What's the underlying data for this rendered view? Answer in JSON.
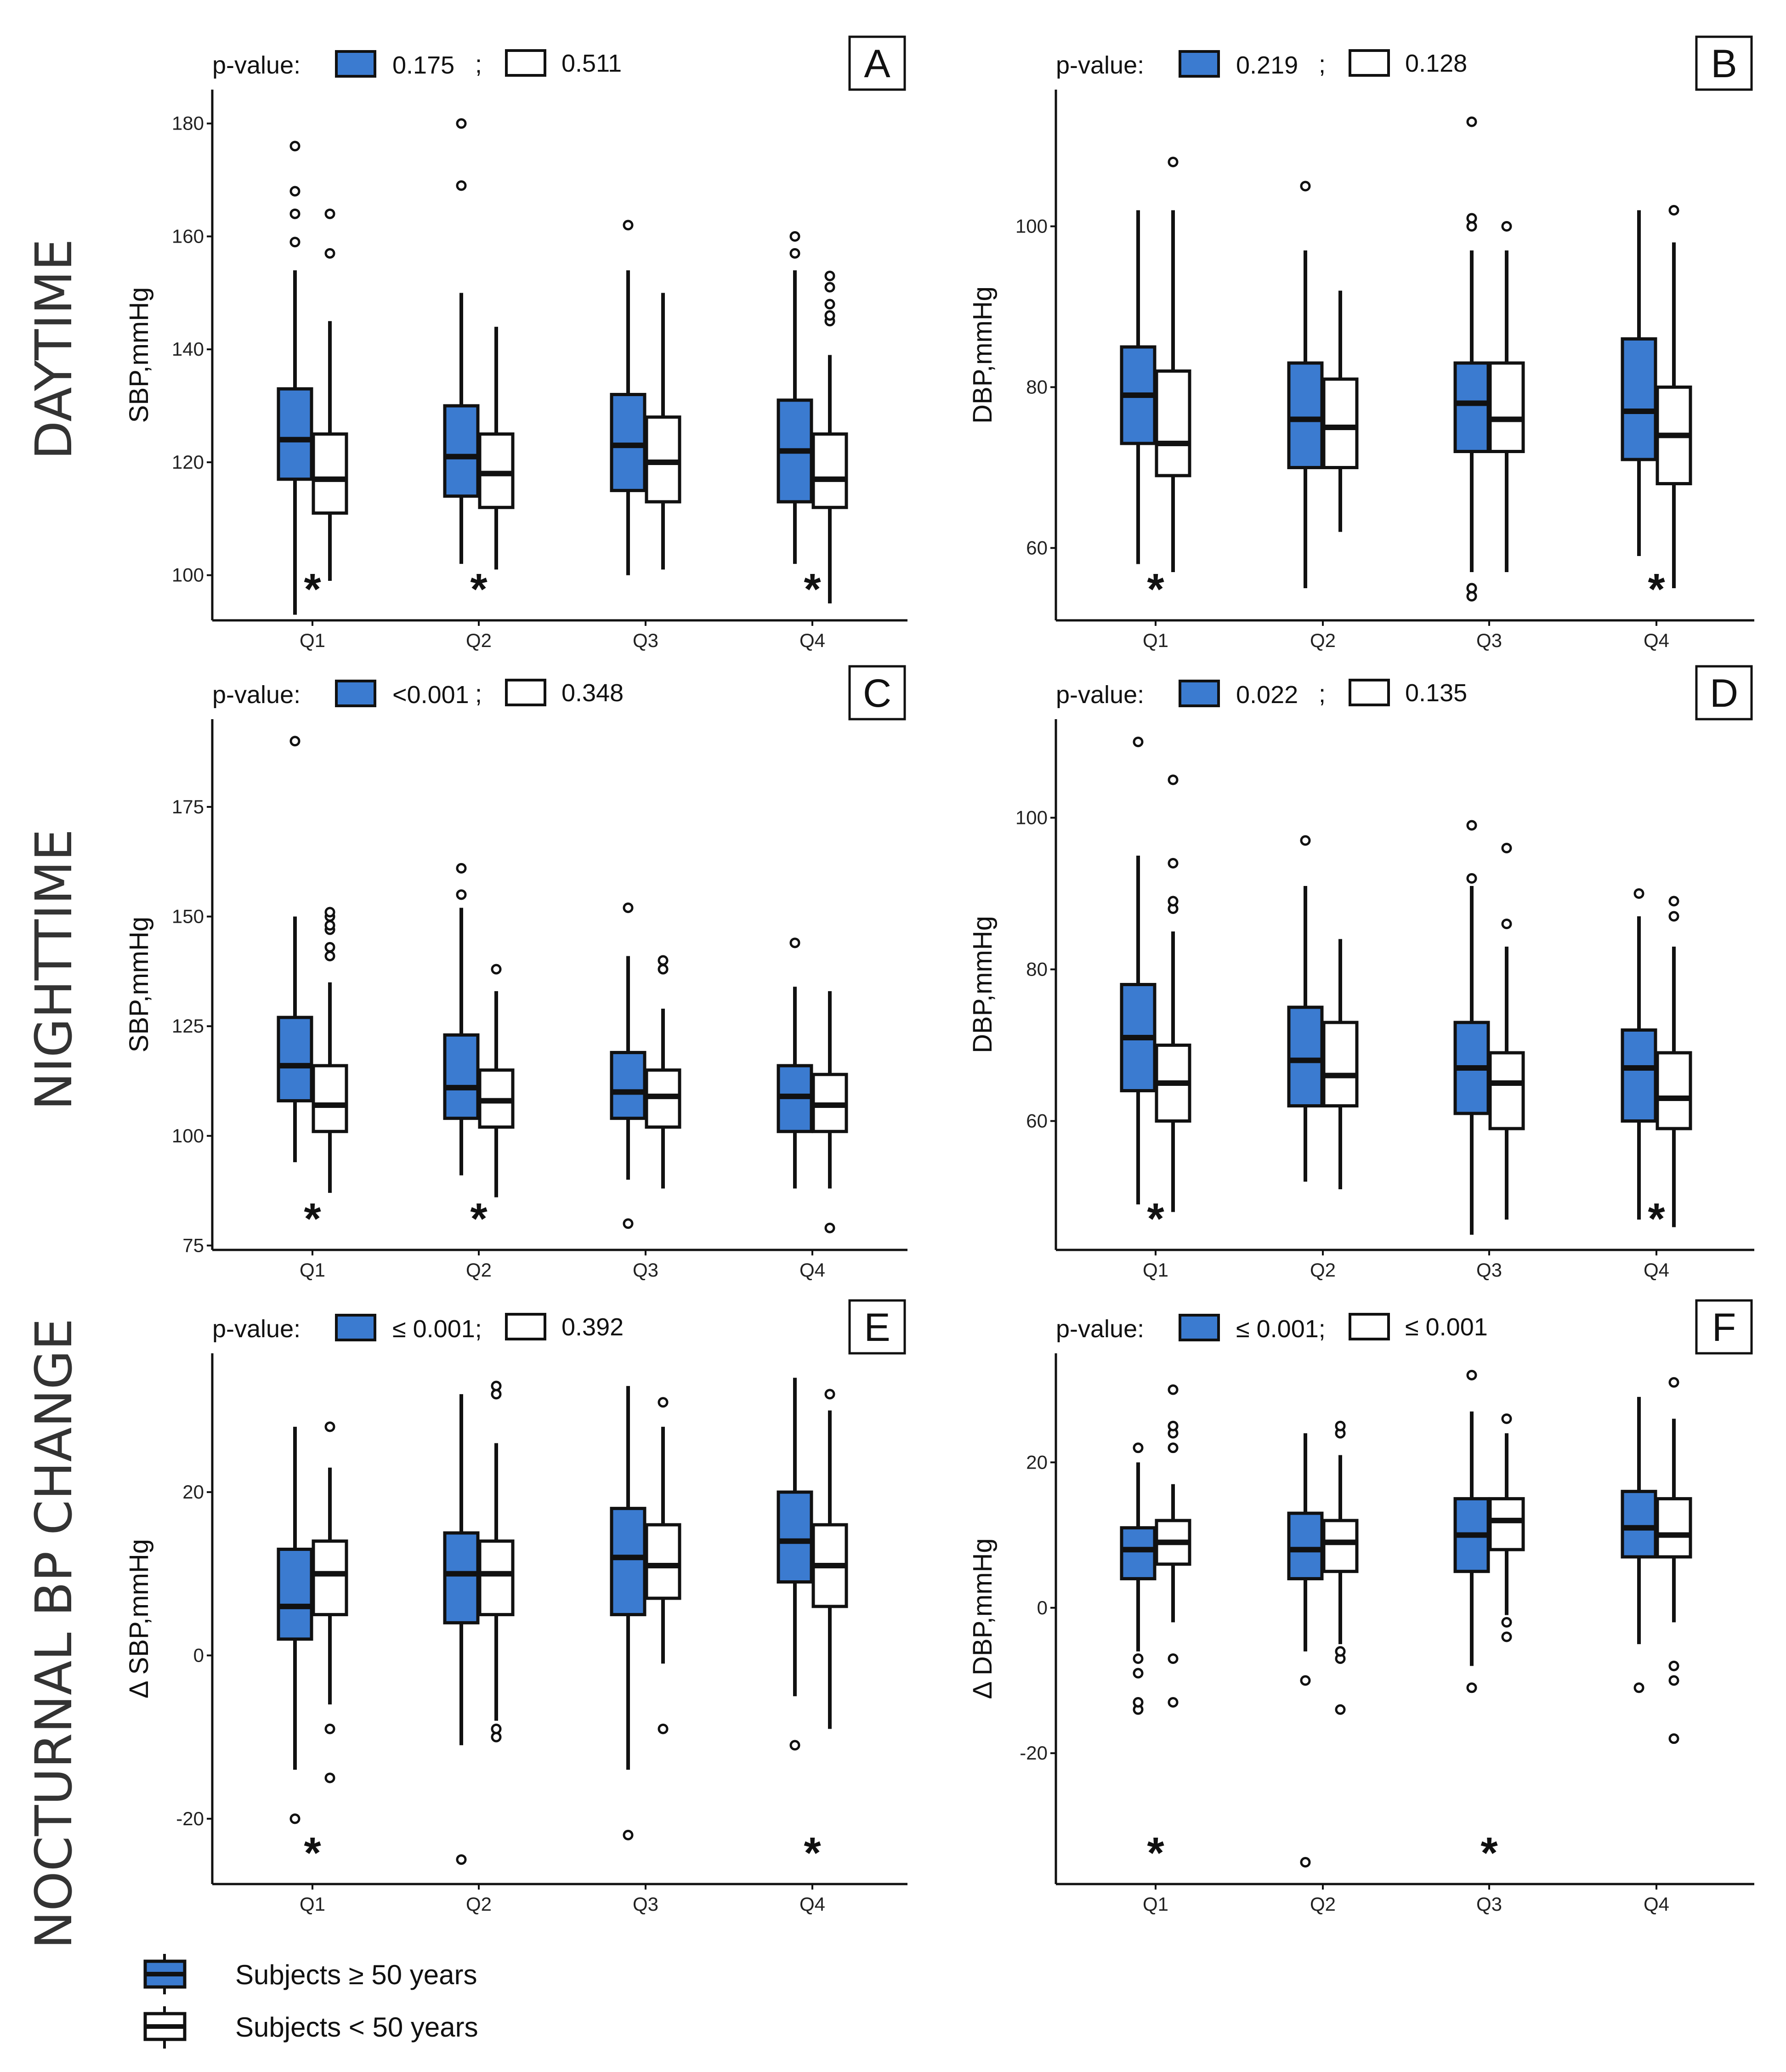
{
  "row_labels": [
    "DAYTIME",
    "NIGHTTIME",
    "NOCTURNAL BP CHANGE"
  ],
  "legend": {
    "older_label": "Subjects ≥ 50 years",
    "younger_label": "Subjects < 50 years",
    "older_color": "#3b7bd0",
    "younger_color": "#ffffff"
  },
  "star_symbol": "*",
  "chart_data": [
    {
      "id": "A",
      "type": "boxplot",
      "ylabel": "SBP,mmHg",
      "ylim": [
        92,
        186
      ],
      "yticks": [
        100,
        120,
        140,
        160,
        180
      ],
      "categories": [
        "Q1",
        "Q2",
        "Q3",
        "Q4"
      ],
      "pvalue_label": "p-value:",
      "pvalue_older": "0.175",
      "separator": ";",
      "pvalue_younger": "0.511",
      "significance": [
        true,
        true,
        false,
        true
      ],
      "series": [
        {
          "name": "Subjects ≥ 50 years",
          "boxes": [
            {
              "min": 93,
              "q1": 117,
              "median": 124,
              "q3": 133,
              "max": 154,
              "outliers": [
                159,
                164,
                168,
                176
              ]
            },
            {
              "min": 102,
              "q1": 114,
              "median": 121,
              "q3": 130,
              "max": 150,
              "outliers": [
                169,
                180
              ]
            },
            {
              "min": 100,
              "q1": 115,
              "median": 123,
              "q3": 132,
              "max": 154,
              "outliers": [
                162
              ]
            },
            {
              "min": 102,
              "q1": 113,
              "median": 122,
              "q3": 131,
              "max": 154,
              "outliers": [
                157,
                160
              ]
            }
          ]
        },
        {
          "name": "Subjects < 50 years",
          "boxes": [
            {
              "min": 99,
              "q1": 111,
              "median": 117,
              "q3": 125,
              "max": 145,
              "outliers": [
                157,
                164
              ]
            },
            {
              "min": 101,
              "q1": 112,
              "median": 118,
              "q3": 125,
              "max": 144,
              "outliers": []
            },
            {
              "min": 101,
              "q1": 113,
              "median": 120,
              "q3": 128,
              "max": 150,
              "outliers": []
            },
            {
              "min": 95,
              "q1": 112,
              "median": 117,
              "q3": 125,
              "max": 139,
              "outliers": [
                145,
                146,
                148,
                151,
                153
              ]
            }
          ]
        }
      ]
    },
    {
      "id": "B",
      "type": "boxplot",
      "ylabel": "DBP,mmHg",
      "ylim": [
        51,
        117
      ],
      "yticks": [
        60,
        80,
        100
      ],
      "categories": [
        "Q1",
        "Q2",
        "Q3",
        "Q4"
      ],
      "pvalue_label": "p-value:",
      "pvalue_older": "0.219",
      "separator": ";",
      "pvalue_younger": "0.128",
      "significance": [
        true,
        false,
        false,
        true
      ],
      "series": [
        {
          "name": "Subjects ≥ 50 years",
          "boxes": [
            {
              "min": 58,
              "q1": 73,
              "median": 79,
              "q3": 85,
              "max": 102,
              "outliers": []
            },
            {
              "min": 55,
              "q1": 70,
              "median": 76,
              "q3": 83,
              "max": 97,
              "outliers": [
                105
              ]
            },
            {
              "min": 57,
              "q1": 72,
              "median": 78,
              "q3": 83,
              "max": 97,
              "outliers": [
                54,
                55,
                100,
                101,
                113
              ]
            },
            {
              "min": 59,
              "q1": 71,
              "median": 77,
              "q3": 86,
              "max": 102,
              "outliers": []
            }
          ]
        },
        {
          "name": "Subjects < 50 years",
          "boxes": [
            {
              "min": 57,
              "q1": 69,
              "median": 73,
              "q3": 82,
              "max": 102,
              "outliers": [
                108
              ]
            },
            {
              "min": 62,
              "q1": 70,
              "median": 75,
              "q3": 81,
              "max": 92,
              "outliers": []
            },
            {
              "min": 57,
              "q1": 72,
              "median": 76,
              "q3": 83,
              "max": 97,
              "outliers": [
                100
              ]
            },
            {
              "min": 55,
              "q1": 68,
              "median": 74,
              "q3": 80,
              "max": 98,
              "outliers": [
                102
              ]
            }
          ]
        }
      ]
    },
    {
      "id": "C",
      "type": "boxplot",
      "ylabel": "SBP,mmHg",
      "ylim": [
        74,
        195
      ],
      "yticks": [
        75,
        100,
        125,
        150,
        175
      ],
      "categories": [
        "Q1",
        "Q2",
        "Q3",
        "Q4"
      ],
      "pvalue_label": "p-value:",
      "pvalue_older": "<0.001",
      "separator": ";",
      "pvalue_younger": "0.348",
      "significance": [
        true,
        true,
        false,
        false
      ],
      "series": [
        {
          "name": "Subjects ≥ 50 years",
          "boxes": [
            {
              "min": 94,
              "q1": 108,
              "median": 116,
              "q3": 127,
              "max": 150,
              "outliers": [
                190
              ]
            },
            {
              "min": 91,
              "q1": 104,
              "median": 111,
              "q3": 123,
              "max": 152,
              "outliers": [
                155,
                161
              ]
            },
            {
              "min": 90,
              "q1": 104,
              "median": 110,
              "q3": 119,
              "max": 141,
              "outliers": [
                80,
                152
              ]
            },
            {
              "min": 88,
              "q1": 101,
              "median": 109,
              "q3": 116,
              "max": 134,
              "outliers": [
                144
              ]
            }
          ]
        },
        {
          "name": "Subjects < 50 years",
          "boxes": [
            {
              "min": 87,
              "q1": 101,
              "median": 107,
              "q3": 116,
              "max": 135,
              "outliers": [
                141,
                143,
                147,
                148,
                150,
                151
              ]
            },
            {
              "min": 86,
              "q1": 102,
              "median": 108,
              "q3": 115,
              "max": 133,
              "outliers": [
                138
              ]
            },
            {
              "min": 88,
              "q1": 102,
              "median": 109,
              "q3": 115,
              "max": 129,
              "outliers": [
                138,
                140
              ]
            },
            {
              "min": 88,
              "q1": 101,
              "median": 107,
              "q3": 114,
              "max": 133,
              "outliers": [
                79
              ]
            }
          ]
        }
      ]
    },
    {
      "id": "D",
      "type": "boxplot",
      "ylabel": "DBP,mmHg",
      "ylim": [
        43,
        113
      ],
      "yticks": [
        60,
        80,
        100
      ],
      "categories": [
        "Q1",
        "Q2",
        "Q3",
        "Q4"
      ],
      "pvalue_label": "p-value:",
      "pvalue_older": "0.022",
      "separator": ";",
      "pvalue_younger": "0.135",
      "significance": [
        true,
        false,
        false,
        true
      ],
      "series": [
        {
          "name": "Subjects ≥ 50 years",
          "boxes": [
            {
              "min": 49,
              "q1": 64,
              "median": 71,
              "q3": 78,
              "max": 95,
              "outliers": [
                110
              ]
            },
            {
              "min": 52,
              "q1": 62,
              "median": 68,
              "q3": 75,
              "max": 91,
              "outliers": [
                97
              ]
            },
            {
              "min": 45,
              "q1": 61,
              "median": 67,
              "q3": 73,
              "max": 91,
              "outliers": [
                92,
                99
              ]
            },
            {
              "min": 47,
              "q1": 60,
              "median": 67,
              "q3": 72,
              "max": 87,
              "outliers": [
                90
              ]
            }
          ]
        },
        {
          "name": "Subjects < 50 years",
          "boxes": [
            {
              "min": 48,
              "q1": 60,
              "median": 65,
              "q3": 70,
              "max": 85,
              "outliers": [
                88,
                89,
                94,
                105
              ]
            },
            {
              "min": 51,
              "q1": 62,
              "median": 66,
              "q3": 73,
              "max": 84,
              "outliers": []
            },
            {
              "min": 47,
              "q1": 59,
              "median": 65,
              "q3": 69,
              "max": 83,
              "outliers": [
                86,
                96
              ]
            },
            {
              "min": 46,
              "q1": 59,
              "median": 63,
              "q3": 69,
              "max": 83,
              "outliers": [
                87,
                89
              ]
            }
          ]
        }
      ]
    },
    {
      "id": "E",
      "type": "boxplot",
      "ylabel": "Δ SBP,mmHg",
      "ylim": [
        -28,
        37
      ],
      "yticks": [
        -20,
        0,
        20
      ],
      "categories": [
        "Q1",
        "Q2",
        "Q3",
        "Q4"
      ],
      "pvalue_label": "p-value:",
      "pvalue_older": "≤ 0.001;",
      "separator": "",
      "pvalue_younger": "0.392",
      "significance": [
        true,
        false,
        false,
        true
      ],
      "series": [
        {
          "name": "Subjects ≥ 50 years",
          "boxes": [
            {
              "min": -14,
              "q1": 2,
              "median": 6,
              "q3": 13,
              "max": 28,
              "outliers": [
                -20
              ]
            },
            {
              "min": -11,
              "q1": 4,
              "median": 10,
              "q3": 15,
              "max": 32,
              "outliers": [
                -25
              ]
            },
            {
              "min": -14,
              "q1": 5,
              "median": 12,
              "q3": 18,
              "max": 33,
              "outliers": [
                -22
              ]
            },
            {
              "min": -5,
              "q1": 9,
              "median": 14,
              "q3": 20,
              "max": 34,
              "outliers": [
                -11
              ]
            }
          ]
        },
        {
          "name": "Subjects < 50 years",
          "boxes": [
            {
              "min": -6,
              "q1": 5,
              "median": 10,
              "q3": 14,
              "max": 23,
              "outliers": [
                -15,
                -9,
                28
              ]
            },
            {
              "min": -8,
              "q1": 5,
              "median": 10,
              "q3": 14,
              "max": 26,
              "outliers": [
                -10,
                -9,
                32,
                33
              ]
            },
            {
              "min": -1,
              "q1": 7,
              "median": 11,
              "q3": 16,
              "max": 28,
              "outliers": [
                -9,
                31
              ]
            },
            {
              "min": -9,
              "q1": 6,
              "median": 11,
              "q3": 16,
              "max": 30,
              "outliers": [
                32
              ]
            }
          ]
        }
      ]
    },
    {
      "id": "F",
      "type": "boxplot",
      "ylabel": "Δ DBP,mmHg",
      "ylim": [
        -38,
        35
      ],
      "yticks": [
        -20,
        0,
        20
      ],
      "categories": [
        "Q1",
        "Q2",
        "Q3",
        "Q4"
      ],
      "pvalue_label": "p-value:",
      "pvalue_older": "≤ 0.001;",
      "separator": "",
      "pvalue_younger": "≤ 0.001",
      "significance": [
        true,
        false,
        true,
        false
      ],
      "series": [
        {
          "name": "Subjects ≥ 50 years",
          "boxes": [
            {
              "min": -6,
              "q1": 4,
              "median": 8,
              "q3": 11,
              "max": 20,
              "outliers": [
                -14,
                -13,
                -9,
                -7,
                22
              ]
            },
            {
              "min": -6,
              "q1": 4,
              "median": 8,
              "q3": 13,
              "max": 24,
              "outliers": [
                -10,
                -35
              ]
            },
            {
              "min": -8,
              "q1": 5,
              "median": 10,
              "q3": 15,
              "max": 27,
              "outliers": [
                -11,
                32
              ]
            },
            {
              "min": -5,
              "q1": 7,
              "median": 11,
              "q3": 16,
              "max": 29,
              "outliers": [
                -11
              ]
            }
          ]
        },
        {
          "name": "Subjects < 50 years",
          "boxes": [
            {
              "min": -2,
              "q1": 6,
              "median": 9,
              "q3": 12,
              "max": 17,
              "outliers": [
                -13,
                -7,
                22,
                24,
                25,
                30
              ]
            },
            {
              "min": -5,
              "q1": 5,
              "median": 9,
              "q3": 12,
              "max": 21,
              "outliers": [
                -14,
                -7,
                -6,
                24,
                25
              ]
            },
            {
              "min": -1,
              "q1": 8,
              "median": 12,
              "q3": 15,
              "max": 24,
              "outliers": [
                -4,
                -2,
                26
              ]
            },
            {
              "min": -2,
              "q1": 7,
              "median": 10,
              "q3": 15,
              "max": 26,
              "outliers": [
                -18,
                -10,
                -8,
                31
              ]
            }
          ]
        }
      ]
    }
  ]
}
